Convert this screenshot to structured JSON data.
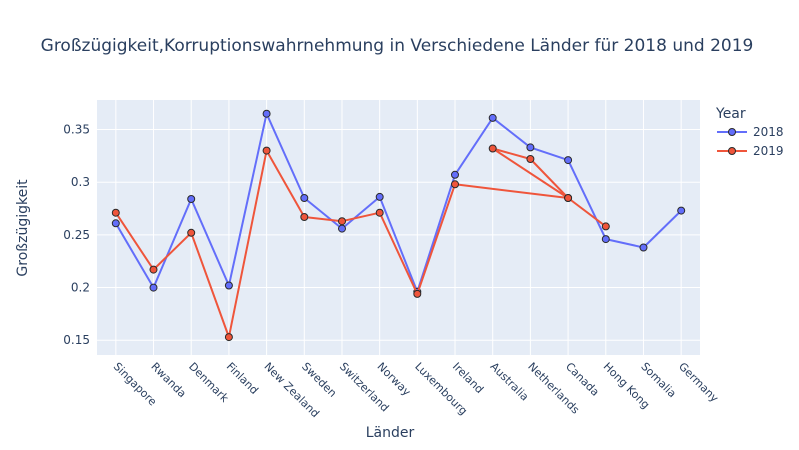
{
  "chart_data": {
    "type": "line",
    "title": "Großzügigkeit,Korruptionswahrnehmung in Verschiedene Länder für 2018 und 2019",
    "xlabel": "Länder",
    "ylabel": "Großzügigkeit",
    "ylim": [
      0.136,
      0.378
    ],
    "yticks": [
      0.15,
      0.2,
      0.25,
      0.3,
      0.35
    ],
    "ytick_labels": [
      "0.15",
      "0.2",
      "0.25",
      "0.3",
      "0.35"
    ],
    "categories": [
      "Singapore",
      "Rwanda",
      "Denmark",
      "Finland",
      "New Zealand",
      "Sweden",
      "Switzerland",
      "Norway",
      "Luxembourg",
      "Ireland",
      "Australia",
      "Netherlands",
      "Canada",
      "Hong Kong",
      "Somalia",
      "Germany"
    ],
    "legend": {
      "title": "Year",
      "position": "top-right"
    },
    "grid": true,
    "plot_bgcolor": "#e5ecf6",
    "series": [
      {
        "name": "2018",
        "color": "#636efa",
        "x": [
          "Singapore",
          "Rwanda",
          "Denmark",
          "Finland",
          "New Zealand",
          "Sweden",
          "Switzerland",
          "Norway",
          "Luxembourg",
          "Ireland",
          "Australia",
          "Netherlands",
          "Canada",
          "Hong Kong",
          "Somalia",
          "Germany"
        ],
        "y": [
          0.261,
          0.2,
          0.284,
          0.202,
          0.365,
          0.285,
          0.256,
          0.286,
          0.196,
          0.307,
          0.361,
          0.333,
          0.321,
          0.246,
          0.238,
          0.273
        ]
      },
      {
        "name": "2019",
        "color": "#ef553b",
        "x": [
          "Singapore",
          "Rwanda",
          "Denmark",
          "Finland",
          "New Zealand",
          "Sweden",
          "Switzerland",
          "Norway",
          "Luxembourg",
          "Ireland",
          "Canada",
          "Australia",
          "Netherlands",
          "Canada",
          "Hong Kong"
        ],
        "y": [
          0.271,
          0.217,
          0.252,
          0.153,
          0.33,
          0.267,
          0.263,
          0.271,
          0.194,
          0.298,
          0.285,
          0.332,
          0.322,
          0.285,
          0.258
        ]
      }
    ]
  }
}
